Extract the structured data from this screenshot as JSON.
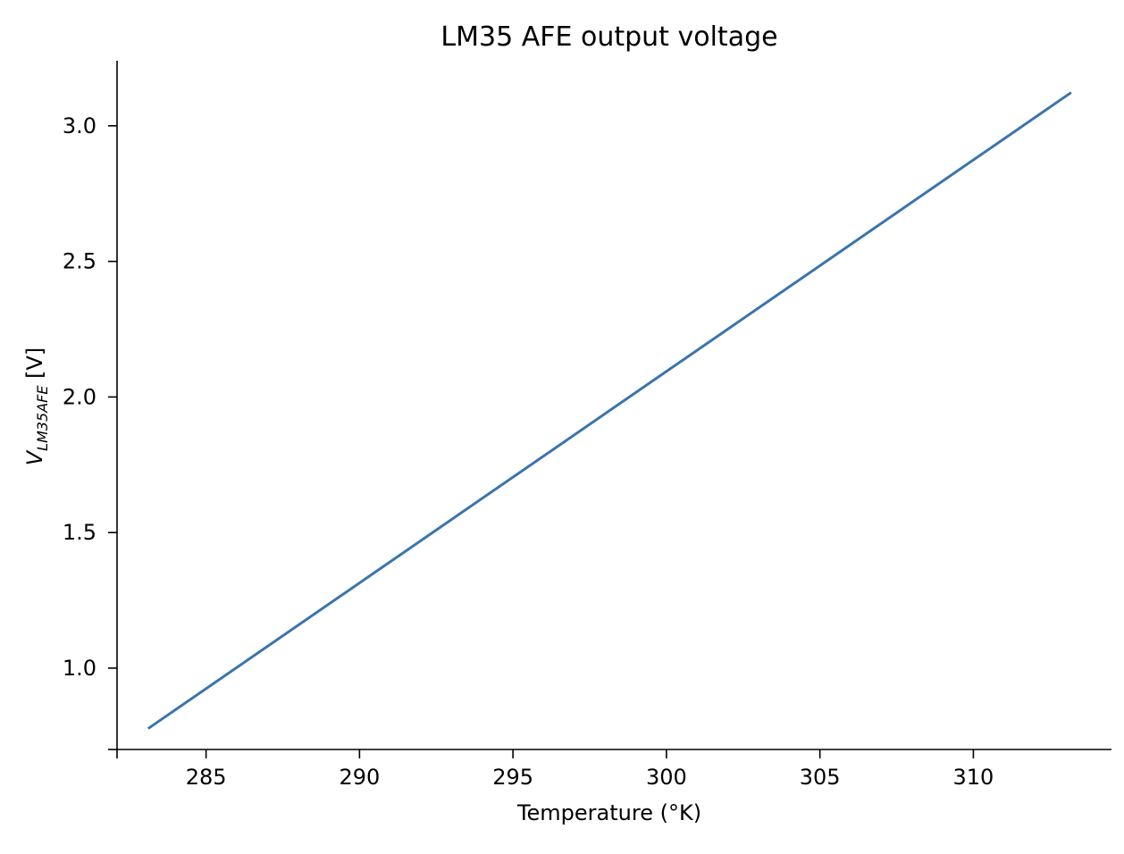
{
  "chart_data": {
    "type": "line",
    "title": "LM35 AFE output voltage",
    "xlabel": "Temperature (°K)",
    "ylabel": {
      "var": "V",
      "subscript": "LM35AFE",
      "unit": " [V]"
    },
    "xlim": [
      282.1,
      314.5
    ],
    "ylim": [
      0.7,
      3.24
    ],
    "xticks": [
      285,
      290,
      295,
      300,
      305,
      310
    ],
    "xtick_labels": [
      "285",
      "290",
      "295",
      "300",
      "305",
      "310"
    ],
    "yticks": [
      1.0,
      1.5,
      2.0,
      2.5,
      3.0
    ],
    "ytick_labels": [
      "1.0",
      "1.5",
      "2.0",
      "2.5",
      "3.0"
    ],
    "grid": false,
    "series": [
      {
        "color": "#3a74ad",
        "x": [
          283.15,
          313.15
        ],
        "y": [
          0.78,
          3.12
        ]
      }
    ]
  }
}
